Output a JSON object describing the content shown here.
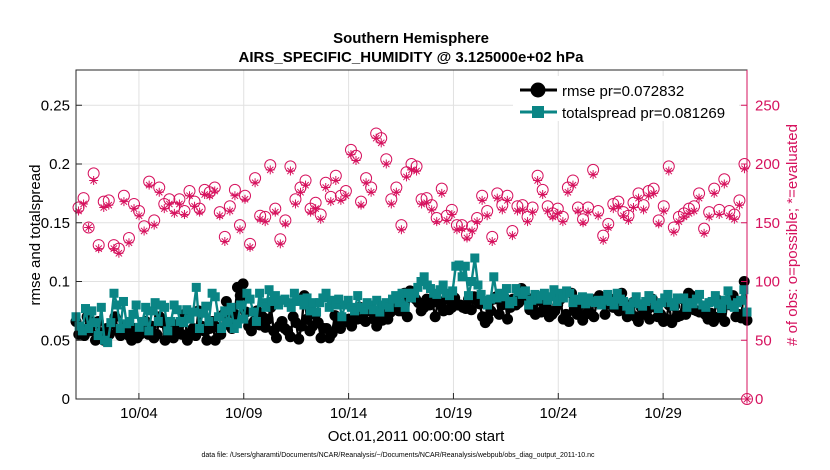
{
  "chart_data": {
    "type": "line",
    "title": "Southern Hemisphere",
    "subtitle": "AIRS_SPECIFIC_HUMIDITY @ 3.125000e+02 hPa",
    "xlabel": "Oct.01,2011 00:00:00 start",
    "ylabel": "rmse and totalspread",
    "ylabel_right": "# of obs: o=possible; *=evaluated",
    "footnote": "data file: /Users/gharamti/Documents/NCAR/Reanalysis/~/Documents/NCAR/Reanalysis/webpub/obs_diag_output_2011-10.nc",
    "x_range_days": [
      1,
      33
    ],
    "x_ticks": [
      {
        "day": 4,
        "label": "10/04"
      },
      {
        "day": 9,
        "label": "10/09"
      },
      {
        "day": 14,
        "label": "10/14"
      },
      {
        "day": 19,
        "label": "10/19"
      },
      {
        "day": 24,
        "label": "10/24"
      },
      {
        "day": 29,
        "label": "10/29"
      }
    ],
    "ylim": [
      0,
      0.28
    ],
    "y_ticks": [
      {
        "value": 0,
        "label": "0"
      },
      {
        "value": 0.05,
        "label": "0.05"
      },
      {
        "value": 0.1,
        "label": "0.1"
      },
      {
        "value": 0.15,
        "label": "0.15"
      },
      {
        "value": 0.2,
        "label": "0.2"
      },
      {
        "value": 0.25,
        "label": "0.25"
      }
    ],
    "ylim_right": [
      0,
      280
    ],
    "y_ticks_right": [
      {
        "value": 0,
        "label": "0"
      },
      {
        "value": 50,
        "label": "50"
      },
      {
        "value": 100,
        "label": "100"
      },
      {
        "value": 150,
        "label": "150"
      },
      {
        "value": 200,
        "label": "200"
      },
      {
        "value": 250,
        "label": "250"
      }
    ],
    "legend": [
      {
        "name": "rmse pr=0.072832",
        "color": "#000000",
        "marker": "circle"
      },
      {
        "name": "totalspread pr=0.081269",
        "color": "#0a8585",
        "marker": "square"
      }
    ],
    "colors": {
      "rmse": "#000000",
      "spread": "#0a8585",
      "obs": "#d6125e"
    },
    "series": [
      {
        "name": "rmse",
        "values": [
          0.066,
          0.055,
          0.06,
          0.054,
          0.07,
          0.058,
          0.064,
          0.05,
          0.066,
          0.056,
          0.05,
          0.06,
          0.055,
          0.064,
          0.07,
          0.058,
          0.054,
          0.062,
          0.059,
          0.054,
          0.05,
          0.06,
          0.052,
          0.055,
          0.06,
          0.066,
          0.055,
          0.062,
          0.052,
          0.055,
          0.07,
          0.065,
          0.05,
          0.055,
          0.06,
          0.052,
          0.058,
          0.064,
          0.055,
          0.072,
          0.05,
          0.056,
          0.06,
          0.054,
          0.075,
          0.062,
          0.058,
          0.05,
          0.06,
          0.066,
          0.05,
          0.061,
          0.055,
          0.072,
          0.083,
          0.063,
          0.06,
          0.072,
          0.095,
          0.088,
          0.098,
          0.074,
          0.062,
          0.058,
          0.066,
          0.075,
          0.063,
          0.07,
          0.061,
          0.068,
          0.078,
          0.058,
          0.052,
          0.062,
          0.066,
          0.06,
          0.058,
          0.053,
          0.07,
          0.065,
          0.051,
          0.062,
          0.088,
          0.068,
          0.058,
          0.062,
          0.072,
          0.065,
          0.052,
          0.06,
          0.06,
          0.052,
          0.056,
          0.071,
          0.062,
          0.06,
          0.066,
          0.066,
          0.068,
          0.062,
          0.07,
          0.068,
          0.078,
          0.068,
          0.066,
          0.075,
          0.075,
          0.068,
          0.062,
          0.072,
          0.067,
          0.073,
          0.068,
          0.074,
          0.08,
          0.085,
          0.075,
          0.075,
          0.09,
          0.07,
          0.092,
          0.09,
          0.085,
          0.082,
          0.075,
          0.078,
          0.085,
          0.08,
          0.082,
          0.07,
          0.083,
          0.08,
          0.075,
          0.085,
          0.076,
          0.078,
          0.086,
          0.08,
          0.08,
          0.078,
          0.077,
          0.085,
          0.076,
          0.087,
          0.084,
          0.081,
          0.07,
          0.065,
          0.068,
          0.075,
          0.085,
          0.087,
          0.072,
          0.08,
          0.086,
          0.068,
          0.078,
          0.085,
          0.08,
          0.082,
          0.094,
          0.085,
          0.086,
          0.076,
          0.08,
          0.072,
          0.085,
          0.074,
          0.082,
          0.078,
          0.07,
          0.072,
          0.075,
          0.08,
          0.085,
          0.068,
          0.072,
          0.066,
          0.09,
          0.075,
          0.072,
          0.08,
          0.067,
          0.072,
          0.074,
          0.085,
          0.07,
          0.082,
          0.088,
          0.085,
          0.072,
          0.081,
          0.085,
          0.078,
          0.082,
          0.075,
          0.09,
          0.079,
          0.07,
          0.073,
          0.082,
          0.07,
          0.066,
          0.078,
          0.072,
          0.075,
          0.068,
          0.085,
          0.078,
          0.07,
          0.072,
          0.066,
          0.068,
          0.08,
          0.065,
          0.079,
          0.07,
          0.071,
          0.085,
          0.072,
          0.09,
          0.088,
          0.076,
          0.075,
          0.074,
          0.075,
          0.072,
          0.068,
          0.073,
          0.066,
          0.085,
          0.07,
          0.08,
          0.066,
          0.083,
          0.08,
          0.088,
          0.07,
          0.072,
          0.069,
          0.1,
          0.067
        ]
      },
      {
        "name": "totalspread",
        "values": [
          0.07,
          0.062,
          0.058,
          0.077,
          0.06,
          0.075,
          0.065,
          0.054,
          0.078,
          0.05,
          0.048,
          0.065,
          0.09,
          0.08,
          0.06,
          0.083,
          0.064,
          0.066,
          0.072,
          0.08,
          0.061,
          0.066,
          0.078,
          0.058,
          0.075,
          0.082,
          0.066,
          0.08,
          0.078,
          0.058,
          0.066,
          0.08,
          0.076,
          0.066,
          0.065,
          0.076,
          0.068,
          0.074,
          0.095,
          0.06,
          0.073,
          0.079,
          0.066,
          0.09,
          0.087,
          0.07,
          0.06,
          0.075,
          0.065,
          0.078,
          0.06,
          0.064,
          0.08,
          0.068,
          0.09,
          0.085,
          0.074,
          0.066,
          0.09,
          0.082,
          0.078,
          0.093,
          0.083,
          0.088,
          0.08,
          0.084,
          0.085,
          0.082,
          0.078,
          0.09,
          0.083,
          0.085,
          0.08,
          0.086,
          0.075,
          0.082,
          0.074,
          0.082,
          0.086,
          0.09,
          0.078,
          0.084,
          0.08,
          0.085,
          0.07,
          0.08,
          0.084,
          0.078,
          0.075,
          0.088,
          0.078,
          0.076,
          0.082,
          0.08,
          0.076,
          0.084,
          0.074,
          0.08,
          0.082,
          0.078,
          0.085,
          0.088,
          0.082,
          0.09,
          0.078,
          0.09,
          0.086,
          0.09,
          0.095,
          0.1,
          0.104,
          0.097,
          0.094,
          0.09,
          0.089,
          0.093,
          0.097,
          0.09,
          0.088,
          0.092,
          0.113,
          0.114,
          0.104,
          0.113,
          0.088,
          0.1,
          0.12,
          0.097,
          0.089,
          0.084,
          0.08,
          0.085,
          0.104,
          0.086,
          0.09,
          0.087,
          0.094,
          0.081,
          0.083,
          0.094,
          0.091,
          0.089,
          0.092,
          0.08,
          0.084,
          0.089,
          0.085,
          0.088,
          0.09,
          0.084,
          0.087,
          0.093,
          0.083,
          0.09,
          0.086,
          0.092,
          0.09,
          0.082,
          0.085,
          0.084,
          0.087,
          0.081,
          0.086,
          0.083,
          0.082,
          0.084,
          0.08,
          0.084,
          0.089,
          0.083,
          0.08,
          0.09,
          0.085,
          0.083,
          0.079,
          0.076,
          0.082,
          0.087,
          0.081,
          0.079,
          0.083,
          0.088,
          0.085,
          0.08,
          0.077,
          0.082,
          0.086,
          0.089,
          0.082,
          0.079,
          0.086,
          0.085,
          0.086,
          0.078,
          0.082,
          0.081,
          0.085,
          0.089,
          0.08,
          0.078,
          0.082,
          0.083,
          0.088,
          0.081,
          0.077,
          0.084,
          0.092,
          0.08,
          0.078,
          0.082,
          0.084,
          0.093,
          0.074
        ]
      },
      {
        "name": "obs_possible",
        "values": [
          163,
          171,
          146,
          192,
          131,
          168,
          169,
          131,
          128,
          173,
          137,
          166,
          160,
          147,
          185,
          152,
          180,
          166,
          170,
          163,
          170,
          160,
          177,
          168,
          162,
          178,
          176,
          180,
          159,
          138,
          164,
          178,
          148,
          173,
          132,
          188,
          156,
          155,
          199,
          162,
          136,
          152,
          198,
          170,
          180,
          186,
          162,
          167,
          157,
          184,
          172,
          190,
          173,
          177,
          212,
          207,
          168,
          188,
          180,
          226,
          222,
          204,
          170,
          180,
          148,
          193,
          200,
          198,
          170,
          171,
          165,
          154,
          179,
          156,
          161,
          148,
          148,
          140,
          147,
          154,
          173,
          160,
          138,
          175,
          165,
          173,
          143,
          164,
          165,
          155,
          163,
          190,
          178,
          164,
          158,
          162,
          155,
          180,
          186,
          163,
          153,
          163,
          195,
          160,
          139,
          149,
          166,
          168,
          159,
          156,
          167,
          175,
          165,
          177,
          179,
          152,
          164,
          198,
          146,
          155,
          158,
          162,
          164,
          175,
          145,
          159,
          179,
          161,
          187,
          160,
          157,
          169,
          200
        ]
      },
      {
        "name": "obs_evaluated",
        "values": [
          160,
          166,
          146,
          186,
          128,
          163,
          165,
          128,
          124,
          168,
          133,
          162,
          156,
          143,
          182,
          148,
          176,
          162,
          166,
          158,
          166,
          157,
          173,
          164,
          159,
          174,
          173,
          177,
          156,
          134,
          160,
          173,
          144,
          170,
          129,
          184,
          153,
          151,
          195,
          159,
          132,
          149,
          194,
          166,
          176,
          182,
          159,
          162,
          153,
          180,
          168,
          186,
          169,
          173,
          208,
          203,
          165,
          184,
          176,
          222,
          218,
          200,
          166,
          176,
          144,
          189,
          195,
          194,
          166,
          167,
          161,
          151,
          175,
          152,
          157,
          144,
          145,
          137,
          143,
          151,
          169,
          156,
          134,
          171,
          161,
          169,
          139,
          160,
          161,
          151,
          159,
          186,
          174,
          160,
          155,
          158,
          151,
          176,
          182,
          160,
          150,
          159,
          191,
          156,
          135,
          146,
          162,
          164,
          156,
          152,
          163,
          171,
          161,
          173,
          175,
          149,
          160,
          194,
          142,
          151,
          155,
          158,
          160,
          171,
          141,
          155,
          175,
          157,
          183,
          156,
          153,
          165,
          196
        ]
      }
    ]
  }
}
